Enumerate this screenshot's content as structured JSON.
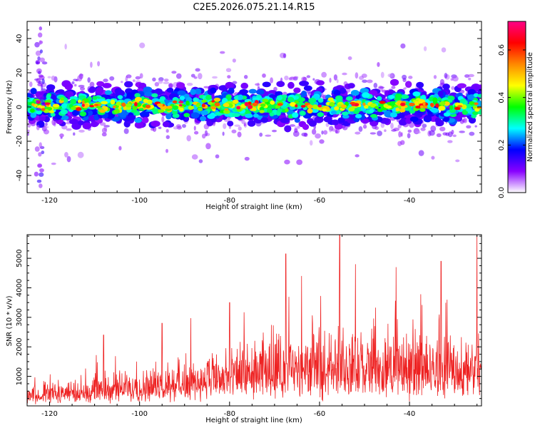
{
  "title": "C2E5.2026.075.21.14.R15",
  "chart_data": [
    {
      "type": "heatmap",
      "name": "spectrogram",
      "xlabel": "Height of straight line (km)",
      "ylabel": "Frequency (Hz)",
      "xlim": [
        -125,
        -24
      ],
      "ylim": [
        -50,
        50
      ],
      "xticks": [
        -120,
        -100,
        -80,
        -60,
        -40
      ],
      "xtick_labels": [
        "-120",
        "-100",
        "-80",
        "-60",
        "-40"
      ],
      "yticks": [
        -40,
        -20,
        0,
        20,
        40
      ],
      "ytick_labels": [
        "-40",
        "-20",
        "0",
        "20",
        "40"
      ],
      "band_center_hz": 1,
      "band_halfwidth_hz": 6,
      "description_values": "Spectral energy concentrated in a narrow band around 0-3 Hz across all heights; amplitude peaks ~0.7",
      "colorbar": {
        "label": "Normalized spectral amplitude",
        "range": [
          0,
          0.72
        ],
        "ticks": [
          0.0,
          0.2,
          0.4,
          0.6
        ],
        "tick_labels": [
          "0.0",
          "0.2",
          "0.4",
          "0.6"
        ],
        "colors": [
          "#ffffff",
          "#8800ff",
          "#0000ff",
          "#00ffff",
          "#00ff00",
          "#ffff00",
          "#ff8800",
          "#ff0000",
          "#ff0088"
        ]
      }
    },
    {
      "type": "line",
      "name": "snr",
      "xlabel": "Height of straight line (km)",
      "ylabel": "SNR (10 * v/v)",
      "xlim": [
        -125,
        -24
      ],
      "ylim": [
        0,
        5800
      ],
      "xticks": [
        -120,
        -100,
        -80,
        -60,
        -40
      ],
      "xtick_labels": [
        "-120",
        "-100",
        "-80",
        "-60",
        "-40"
      ],
      "yticks": [
        1000,
        2000,
        3000,
        4000,
        5000
      ],
      "ytick_labels": [
        "1000",
        "2000",
        "3000",
        "4000",
        "5000"
      ],
      "color": "#ee2222",
      "trend": {
        "x": [
          -125,
          -110,
          -100,
          -90,
          -80,
          -72,
          -60,
          -50,
          -40,
          -30,
          -24
        ],
        "y": [
          500,
          800,
          900,
          1100,
          1400,
          1700,
          1800,
          1800,
          1800,
          1700,
          1900
        ]
      },
      "peaks": [
        {
          "x": -121,
          "y": 800
        },
        {
          "x": -108,
          "y": 2400
        },
        {
          "x": -95,
          "y": 2800
        },
        {
          "x": -80,
          "y": 3500
        },
        {
          "x": -67.5,
          "y": 5150
        },
        {
          "x": -64,
          "y": 4400
        },
        {
          "x": -55.5,
          "y": 5800
        },
        {
          "x": -52,
          "y": 4800
        },
        {
          "x": -43,
          "y": 4700
        },
        {
          "x": -33,
          "y": 4900
        },
        {
          "x": -25,
          "y": 5800
        }
      ]
    }
  ]
}
